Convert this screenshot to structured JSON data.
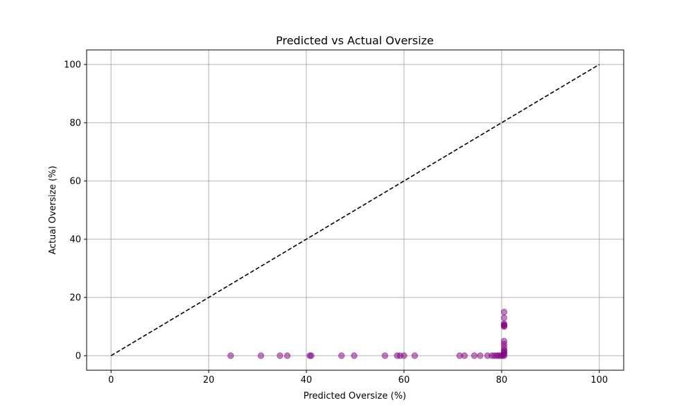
{
  "chart_data": {
    "type": "scatter",
    "title": "Predicted vs Actual Oversize",
    "xlabel": "Predicted Oversize (%)",
    "ylabel": "Actual Oversize (%)",
    "xlim": [
      -5,
      105
    ],
    "ylim": [
      -5,
      105
    ],
    "xticks": [
      0,
      20,
      40,
      60,
      80,
      100
    ],
    "yticks": [
      0,
      20,
      40,
      60,
      80,
      100
    ],
    "grid": true,
    "point_color": "#800080",
    "line_color": "#000000",
    "reference_line": {
      "style": "dashed",
      "points": [
        [
          0,
          0
        ],
        [
          100,
          100
        ]
      ]
    },
    "points": [
      [
        24.5,
        0
      ],
      [
        30.7,
        0
      ],
      [
        34.6,
        0
      ],
      [
        36.1,
        0
      ],
      [
        40.7,
        0
      ],
      [
        41.0,
        0
      ],
      [
        47.2,
        0
      ],
      [
        49.8,
        0
      ],
      [
        56.1,
        0
      ],
      [
        58.6,
        0
      ],
      [
        59.2,
        0
      ],
      [
        60.0,
        0
      ],
      [
        62.2,
        0
      ],
      [
        71.4,
        0
      ],
      [
        72.4,
        0
      ],
      [
        74.4,
        0
      ],
      [
        75.6,
        0
      ],
      [
        77.1,
        0
      ],
      [
        78.0,
        0
      ],
      [
        78.5,
        0
      ],
      [
        79.0,
        0
      ],
      [
        79.4,
        0
      ],
      [
        79.8,
        0
      ],
      [
        80.2,
        0
      ],
      [
        80.5,
        0
      ],
      [
        80.5,
        0.5
      ],
      [
        80.5,
        1
      ],
      [
        80.5,
        1.5
      ],
      [
        80.5,
        2
      ],
      [
        80.5,
        3
      ],
      [
        80.5,
        4
      ],
      [
        80.5,
        5
      ],
      [
        80.5,
        10
      ],
      [
        80.5,
        10.3
      ],
      [
        80.5,
        10.6
      ],
      [
        80.5,
        11
      ],
      [
        80.5,
        13
      ],
      [
        80.5,
        15
      ]
    ]
  }
}
